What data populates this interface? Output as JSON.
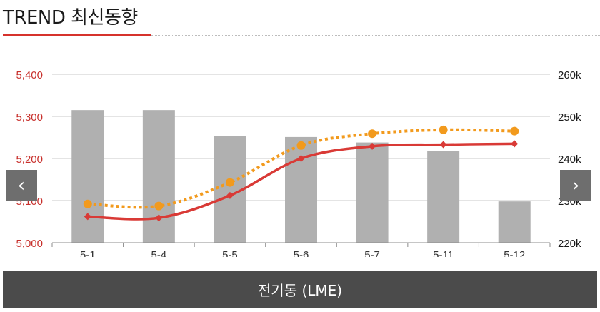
{
  "header": {
    "title": "TREND 최신동향"
  },
  "nav": {
    "prev_icon": "‹",
    "next_icon": "›"
  },
  "footer": {
    "label": "전기동 (LME)"
  },
  "colors": {
    "bar": "#b0b0b0",
    "line_primary": "#d93a36",
    "line_secondary": "#f29a1d",
    "axis_left_text": "#c8302c"
  },
  "chart_data": {
    "type": "bar+line",
    "categories": [
      "5-1",
      "5-4",
      "5-5",
      "5-6",
      "5-7",
      "5-11",
      "5-12"
    ],
    "y_left": {
      "ticks": [
        "5,000",
        "5,100",
        "5,200",
        "5,300",
        "5,400"
      ],
      "range": [
        5000,
        5400
      ]
    },
    "y_right": {
      "ticks": [
        "220k",
        "230k",
        "240k",
        "250k",
        "260k"
      ],
      "range": [
        220,
        260
      ]
    },
    "series": [
      {
        "kind": "bar",
        "axis": "left",
        "values": [
          5315,
          5315,
          5253,
          5251,
          5238,
          5218,
          5098
        ]
      },
      {
        "kind": "line",
        "axis": "left",
        "marker": "diamond",
        "values": [
          5062,
          5059,
          5112,
          5200,
          5229,
          5233,
          5235
        ]
      },
      {
        "kind": "line",
        "axis": "right",
        "marker": "circle",
        "dashed": true,
        "values": [
          229.2,
          228.7,
          234.3,
          243.1,
          245.9,
          246.8,
          246.5
        ]
      }
    ]
  }
}
